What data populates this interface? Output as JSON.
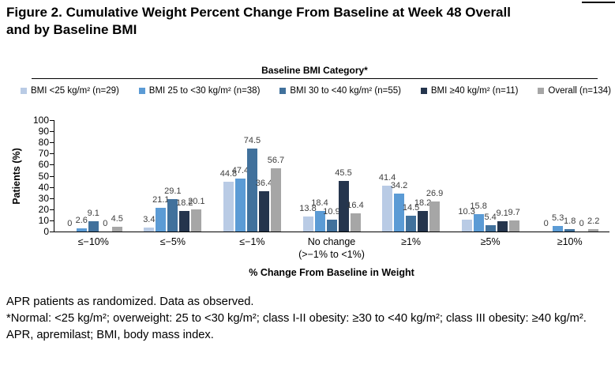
{
  "figure": {
    "title_lines": [
      "Figure 2. Cumulative Weight Percent Change From Baseline at Week 48 Overall",
      "and by Baseline BMI"
    ]
  },
  "legend": {
    "header": "Baseline BMI Category*",
    "items": [
      {
        "label": "BMI <25 kg/m² (n=29)",
        "color": "#b9cbe5"
      },
      {
        "label": "BMI 25 to <30 kg/m² (n=38)",
        "color": "#5b9bd5"
      },
      {
        "label": "BMI 30 to <40 kg/m² (n=55)",
        "color": "#41719c"
      },
      {
        "label": "BMI ≥40 kg/m² (n=11)",
        "color": "#25354d"
      },
      {
        "label": "Overall (n=134)",
        "color": "#a6a6a6"
      }
    ]
  },
  "chart_data": {
    "type": "bar",
    "title": "",
    "xlabel": "% Change From Baseline in Weight",
    "ylabel": "Patients (%)",
    "ylim": [
      0,
      100
    ],
    "ytick_interval": 10,
    "grid": false,
    "legend_position": "top",
    "categories": [
      "≤−10%",
      "≤−5%",
      "≤−1%",
      "No change\n(>−1% to <1%)",
      "≥1%",
      "≥5%",
      "≥10%"
    ],
    "series": [
      {
        "name": "BMI <25 kg/m² (n=29)",
        "color": "#b9cbe5",
        "values": [
          0,
          3.4,
          44.8,
          13.8,
          41.4,
          10.3,
          0
        ]
      },
      {
        "name": "BMI 25 to <30 kg/m² (n=38)",
        "color": "#5b9bd5",
        "values": [
          2.6,
          21.1,
          47.4,
          18.4,
          34.2,
          15.8,
          5.3
        ]
      },
      {
        "name": "BMI 30 to <40 kg/m² (n=55)",
        "color": "#41719c",
        "values": [
          9.1,
          29.1,
          74.5,
          10.9,
          14.5,
          5.4,
          1.8
        ]
      },
      {
        "name": "BMI ≥40 kg/m² (n=11)",
        "color": "#25354d",
        "values": [
          0,
          18.2,
          36.4,
          45.5,
          18.2,
          9.1,
          0
        ]
      },
      {
        "name": "Overall (n=134)",
        "color": "#a6a6a6",
        "values": [
          4.5,
          20.1,
          56.7,
          16.4,
          26.9,
          9.7,
          2.2
        ]
      }
    ]
  },
  "footnotes": {
    "line1": "APR patients as randomized. Data as observed.",
    "line2": "*Normal: <25 kg/m²; overweight: 25 to <30 kg/m²; class I-II obesity: ≥30 to <40 kg/m²; class III obesity: ≥40 kg/m².",
    "line3": "APR, apremilast; BMI, body mass index."
  }
}
